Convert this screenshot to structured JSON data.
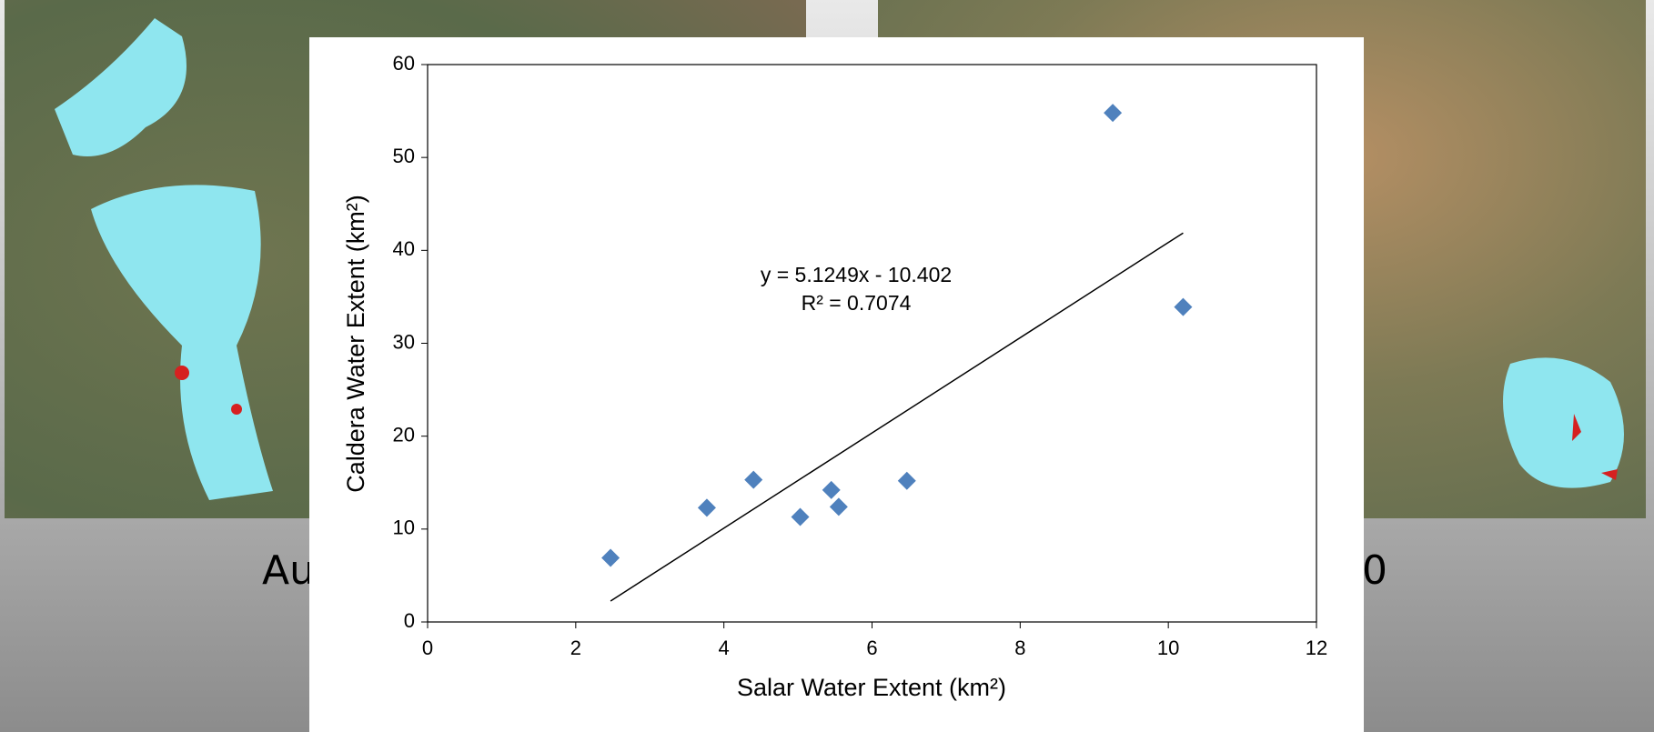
{
  "slide": {
    "captions": [
      "Au",
      "0"
    ]
  },
  "chart_data": {
    "type": "scatter",
    "x_label": "Salar Water Extent (km²)",
    "y_label": "Caldera Water Extent (km²)",
    "x": [
      2.47,
      3.77,
      4.4,
      5.03,
      5.45,
      5.55,
      6.47,
      9.25,
      10.2
    ],
    "series": [
      {
        "color": "#4f81bd",
        "values": [
          6.9,
          12.3,
          15.3,
          11.3,
          14.2,
          12.4,
          15.2,
          54.8,
          33.9
        ]
      }
    ],
    "trendline": {
      "slope": 5.1249,
      "intercept": -10.402,
      "equation": "y = 5.1249x - 10.402",
      "r_squared": "R² = 0.7074"
    },
    "xlim": [
      0,
      12
    ],
    "xticks": [
      0,
      2,
      4,
      6,
      8,
      10,
      12
    ],
    "ylim": [
      0,
      60
    ],
    "yticks": [
      0,
      10,
      20,
      30,
      40,
      50,
      60
    ]
  }
}
